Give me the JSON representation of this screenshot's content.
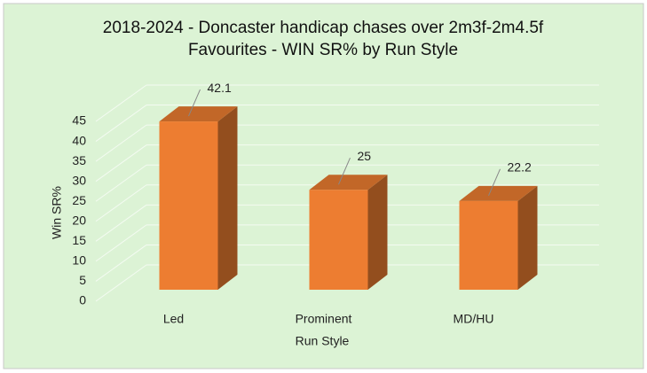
{
  "chart_data": {
    "type": "bar3d",
    "title": [
      "2018-2024 - Doncaster handicap chases over 2m3f-2m4.5f",
      "Favourites - WIN SR% by Run Style"
    ],
    "x_label": "Run Style",
    "y_label": "Win SR%",
    "categories": [
      "Led",
      "Prominent",
      "MD/HU"
    ],
    "values": [
      42.1,
      25,
      22.2
    ],
    "color": "#ed7d31",
    "ylim": [
      0,
      45
    ],
    "yticks": [
      0,
      5,
      10,
      15,
      20,
      25,
      30,
      35,
      40,
      45
    ],
    "grid": true,
    "value_label_color": "#e00000"
  }
}
